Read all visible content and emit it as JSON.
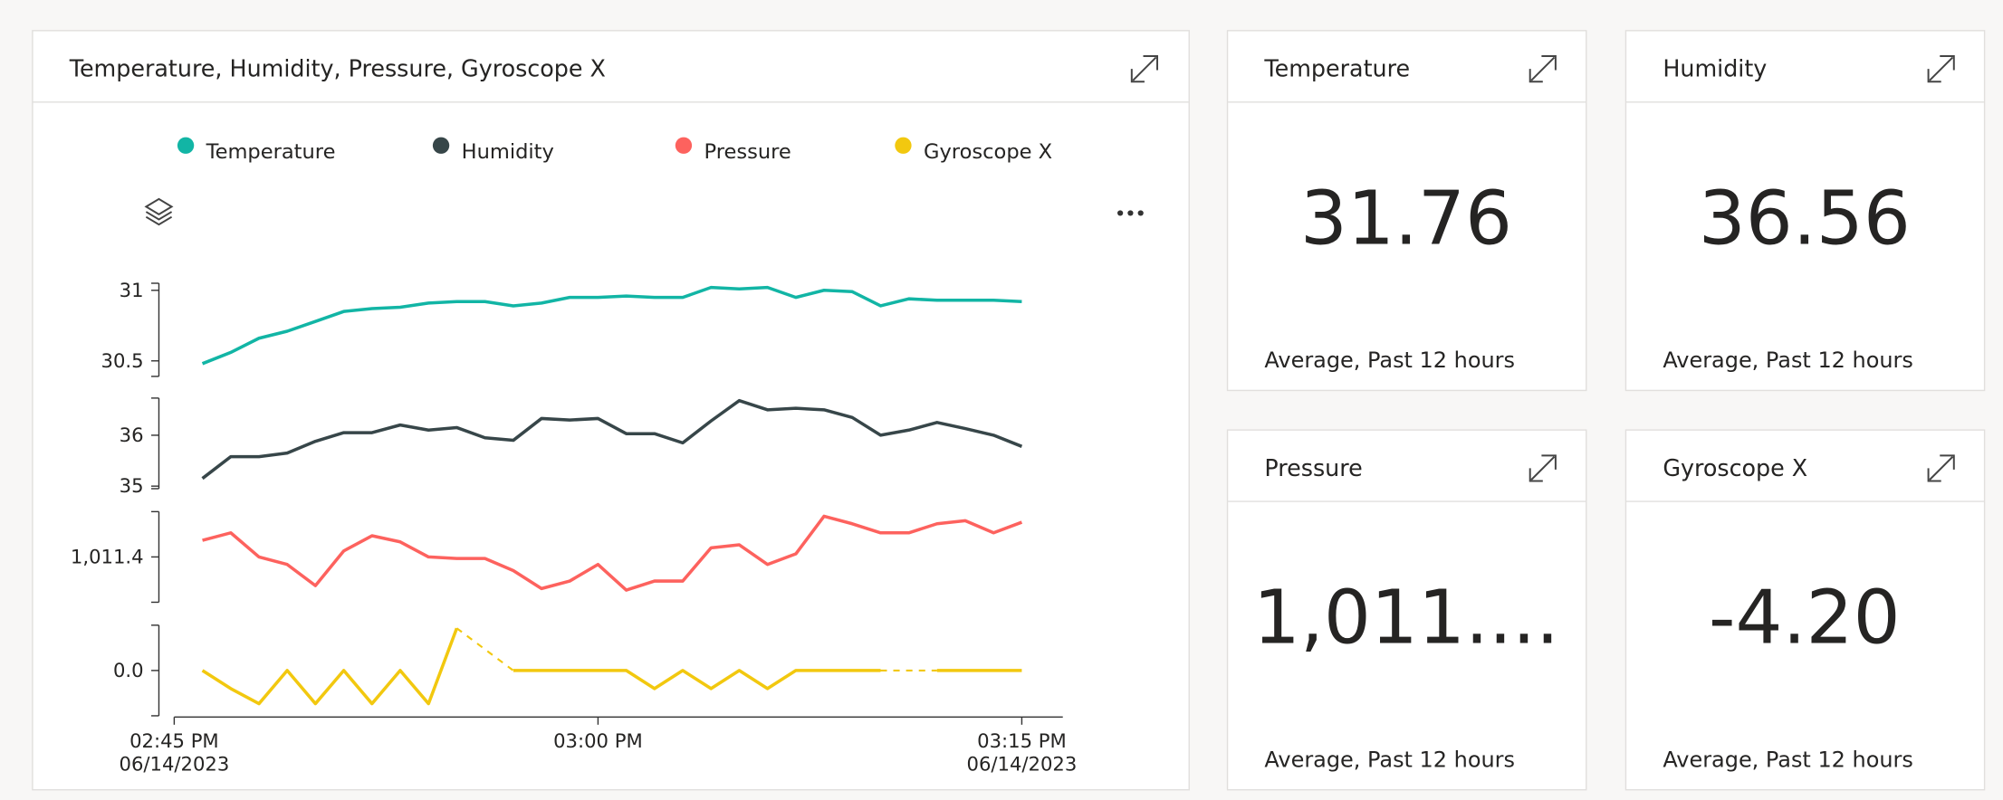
{
  "chart_data": {
    "type": "line",
    "title": "Temperature, Humidity, Pressure, Gyroscope X",
    "x": [
      "02:46 PM",
      "02:47 PM",
      "02:48 PM",
      "02:49 PM",
      "02:50 PM",
      "02:51 PM",
      "02:52 PM",
      "02:53 PM",
      "02:54 PM",
      "02:55 PM",
      "02:56 PM",
      "02:57 PM",
      "02:58 PM",
      "02:59 PM",
      "03:00 PM",
      "03:01 PM",
      "03:02 PM",
      "03:03 PM",
      "03:04 PM",
      "03:05 PM",
      "03:06 PM",
      "03:07 PM",
      "03:08 PM",
      "03:09 PM",
      "03:10 PM",
      "03:11 PM",
      "03:12 PM",
      "03:13 PM",
      "03:14 PM",
      "03:15 PM"
    ],
    "xlim": [
      "02:45 PM",
      "03:16 PM"
    ],
    "xticks": [
      {
        "value": "02:45 PM",
        "label": [
          "02:45 PM",
          "06/14/2023"
        ]
      },
      {
        "value": "03:00 PM",
        "label": [
          "03:00 PM"
        ]
      },
      {
        "value": "03:15 PM",
        "label": [
          "03:15 PM",
          "06/14/2023"
        ]
      }
    ],
    "series": [
      {
        "name": "Temperature",
        "color": "#12b5a5",
        "ylim": [
          30.39,
          31.05
        ],
        "yticks": [
          30.5,
          31
        ],
        "values": [
          30.48,
          30.56,
          30.66,
          30.71,
          30.78,
          30.85,
          30.87,
          30.88,
          30.91,
          30.92,
          30.92,
          30.89,
          30.91,
          30.95,
          30.95,
          30.96,
          30.95,
          30.95,
          31.02,
          31.01,
          31.02,
          30.95,
          31.0,
          30.99,
          30.89,
          30.94,
          30.93,
          30.93,
          30.93,
          30.92
        ]
      },
      {
        "name": "Humidity",
        "color": "#374649",
        "ylim": [
          34.95,
          36.73
        ],
        "yticks": [
          35,
          36
        ],
        "values": [
          35.15,
          35.58,
          35.58,
          35.65,
          35.88,
          36.05,
          36.05,
          36.2,
          36.1,
          36.15,
          35.95,
          35.9,
          36.33,
          36.3,
          36.33,
          36.03,
          36.03,
          35.85,
          36.28,
          36.68,
          36.5,
          36.53,
          36.5,
          36.35,
          36.0,
          36.1,
          36.25,
          36.13,
          36.0,
          35.78
        ]
      },
      {
        "name": "Pressure",
        "color": "#fd625e",
        "ylim": [
          1011.1,
          1011.7
        ],
        "yticks": [
          {
            "value": 1011.4,
            "label": "1,011.4"
          }
        ],
        "values": [
          1011.51,
          1011.56,
          1011.4,
          1011.35,
          1011.21,
          1011.44,
          1011.54,
          1011.5,
          1011.4,
          1011.39,
          1011.39,
          1011.31,
          1011.19,
          1011.24,
          1011.35,
          1011.18,
          1011.24,
          1011.24,
          1011.46,
          1011.48,
          1011.35,
          1011.42,
          1011.67,
          1011.62,
          1011.56,
          1011.56,
          1011.62,
          1011.64,
          1011.56,
          1011.63
        ]
      },
      {
        "name": "Gyroscope X",
        "color": "#f2c80f",
        "ylim": [
          -1.5,
          1.5
        ],
        "yticks": [
          {
            "value": 0,
            "label": "0.0"
          }
        ],
        "values": [
          0,
          -0.6,
          -1.1,
          0,
          -1.1,
          0,
          -1.1,
          0,
          -1.1,
          1.4,
          null,
          0,
          0,
          0,
          0,
          0,
          -0.6,
          0,
          -0.6,
          0,
          -0.6,
          0,
          0,
          0,
          0,
          null,
          0,
          0,
          0,
          0
        ]
      }
    ]
  },
  "tiles": [
    {
      "title": "Temperature",
      "value": "31.76",
      "subtitle": "Average, Past 12 hours"
    },
    {
      "title": "Humidity",
      "value": "36.56",
      "subtitle": "Average, Past 12 hours"
    },
    {
      "title": "Pressure",
      "value": "1,011....",
      "subtitle": "Average, Past 12 hours"
    },
    {
      "title": "Gyroscope X",
      "value": "-4.20",
      "subtitle": "Average, Past 12 hours"
    }
  ]
}
